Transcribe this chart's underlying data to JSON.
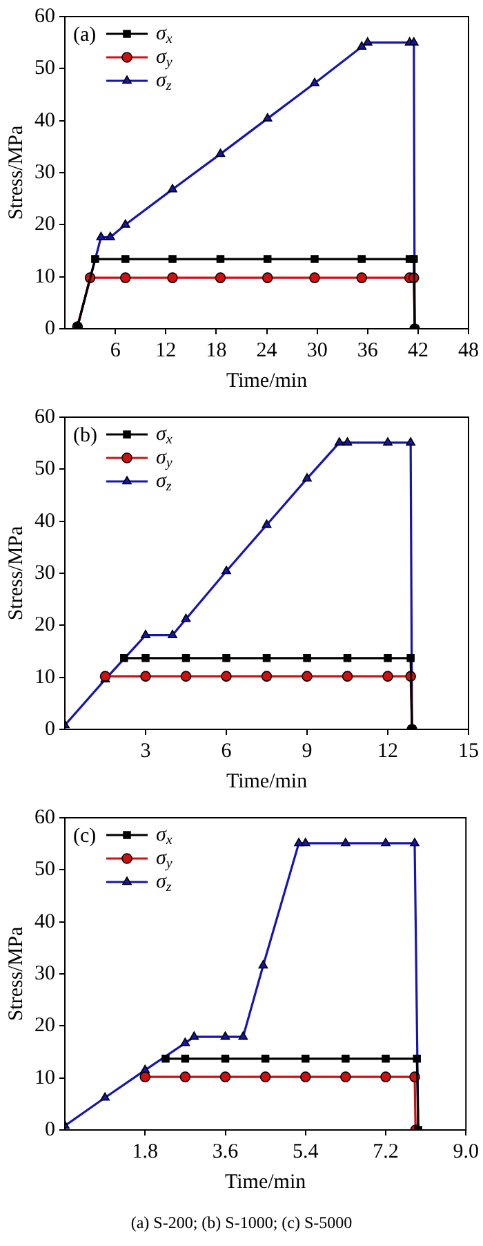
{
  "chart_data": [
    {
      "type": "line",
      "xlabel": "Time/min",
      "ylabel": "Stress/MPa",
      "annotations": [
        "(a)"
      ],
      "xlim": [
        0,
        48
      ],
      "xticks": [
        6,
        12,
        18,
        24,
        30,
        36,
        42,
        48
      ],
      "ylim": [
        0,
        60
      ],
      "yticks": [
        0,
        10,
        20,
        30,
        40,
        50,
        60
      ],
      "legend": "top left",
      "series": [
        {
          "name": "σ$_{x}$",
          "color": "#000000",
          "marker": "square",
          "x": [
            1.5,
            3.6,
            7.2,
            12.8,
            18.5,
            24.1,
            29.7,
            35.3,
            41.0,
            41.5,
            41.6
          ],
          "values": [
            0.4,
            13.4,
            13.4,
            13.4,
            13.4,
            13.4,
            13.4,
            13.4,
            13.4,
            13.4,
            0
          ]
        },
        {
          "name": "σ$_{y}$",
          "color": "#d01010",
          "marker": "circle",
          "x": [
            1.5,
            3.0,
            7.2,
            12.8,
            18.5,
            24.1,
            29.7,
            35.3,
            41.0,
            41.5,
            41.6
          ],
          "values": [
            0.4,
            9.8,
            9.8,
            9.8,
            9.8,
            9.8,
            9.8,
            9.8,
            9.8,
            9.8,
            0
          ]
        },
        {
          "name": "σ$_{z}$",
          "color": "#1515b0",
          "marker": "triangle",
          "x": [
            1.5,
            4.3,
            5.4,
            7.2,
            12.8,
            18.5,
            24.1,
            29.7,
            35.3,
            36.0,
            41.0,
            41.5,
            41.6
          ],
          "values": [
            0.4,
            17.6,
            17.6,
            20.0,
            26.8,
            33.6,
            40.4,
            47.2,
            54.2,
            55.0,
            55.0,
            55.0,
            0
          ]
        }
      ]
    },
    {
      "type": "line",
      "xlabel": "Time/min",
      "ylabel": "Stress/MPa",
      "annotations": [
        "(b)"
      ],
      "xlim": [
        0,
        15
      ],
      "xticks": [
        3,
        6,
        9,
        12,
        15
      ],
      "ylim": [
        0,
        60
      ],
      "yticks": [
        0,
        10,
        20,
        30,
        40,
        50,
        60
      ],
      "legend": "top left",
      "series": [
        {
          "name": "σ$_{x}$",
          "color": "#000000",
          "marker": "square",
          "x": [
            2.2,
            3.0,
            4.5,
            6.0,
            7.5,
            9.0,
            10.5,
            12.0,
            12.85,
            12.9
          ],
          "values": [
            13.7,
            13.7,
            13.7,
            13.7,
            13.7,
            13.7,
            13.7,
            13.7,
            13.7,
            0
          ]
        },
        {
          "name": "σ$_{y}$",
          "color": "#d01010",
          "marker": "circle",
          "x": [
            1.5,
            3.0,
            4.5,
            6.0,
            7.5,
            9.0,
            10.5,
            12.0,
            12.85,
            12.9
          ],
          "values": [
            10.2,
            10.2,
            10.2,
            10.2,
            10.2,
            10.2,
            10.2,
            10.2,
            10.2,
            0
          ]
        },
        {
          "name": "σ$_{z}$",
          "color": "#1515b0",
          "marker": "triangle",
          "x": [
            0,
            1.5,
            3.0,
            4.0,
            4.5,
            6.0,
            7.5,
            9.0,
            10.2,
            10.5,
            12.0,
            12.85,
            12.9
          ],
          "values": [
            0.8,
            9.6,
            18.1,
            18.1,
            21.2,
            30.4,
            39.3,
            48.2,
            55.1,
            55.1,
            55.1,
            55.1,
            0
          ]
        }
      ]
    },
    {
      "type": "line",
      "xlabel": "Time/min",
      "ylabel": "Stress/MPa",
      "annotations": [
        "(c)",
        "(a)  S-200;  (b)  S-1000; (c) S-5000"
      ],
      "xlim": [
        0,
        9
      ],
      "xticks": [
        1.8,
        3.6,
        5.4,
        7.2,
        {
          "value": 9,
          "label": "9.0"
        }
      ],
      "ylim": [
        0,
        60
      ],
      "yticks": [
        0,
        10,
        20,
        30,
        40,
        50,
        60
      ],
      "legend": "top left",
      "series": [
        {
          "name": "σ$_{x}$",
          "color": "#000000",
          "marker": "square",
          "x": [
            2.26,
            2.7,
            3.6,
            4.5,
            5.4,
            6.3,
            7.2,
            7.9,
            7.93
          ],
          "values": [
            13.7,
            13.7,
            13.7,
            13.7,
            13.7,
            13.7,
            13.7,
            13.7,
            0
          ]
        },
        {
          "name": "σ$_{y}$",
          "color": "#d01010",
          "marker": "circle",
          "x": [
            1.8,
            2.7,
            3.6,
            4.5,
            5.4,
            6.3,
            7.2,
            7.85,
            7.87
          ],
          "values": [
            10.2,
            10.2,
            10.2,
            10.2,
            10.2,
            10.2,
            10.2,
            10.2,
            0
          ]
        },
        {
          "name": "σ$_{z}$",
          "color": "#1515b0",
          "marker": "triangle",
          "x": [
            0,
            0.9,
            1.8,
            2.7,
            2.9,
            3.6,
            4.0,
            4.45,
            5.25,
            5.4,
            6.3,
            7.2,
            7.85,
            7.93
          ],
          "values": [
            0.8,
            6.2,
            11.5,
            16.7,
            17.9,
            17.9,
            17.9,
            31.6,
            55.1,
            55.1,
            55.1,
            55.1,
            55.1,
            0
          ]
        }
      ]
    }
  ]
}
